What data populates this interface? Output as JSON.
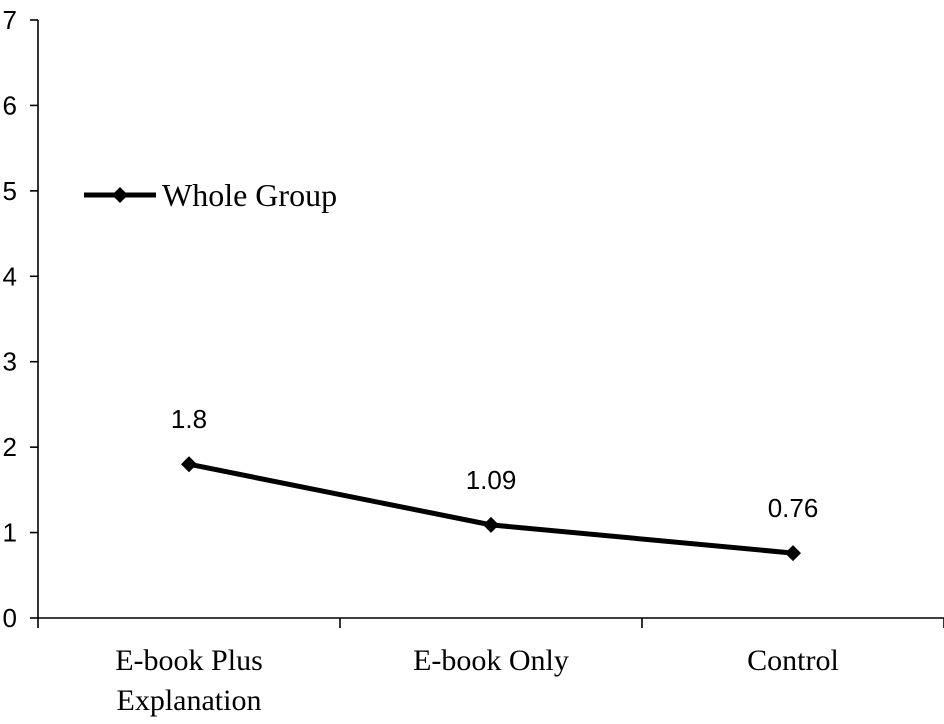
{
  "chart_data": {
    "type": "line",
    "categories": [
      [
        "E-book Plus",
        "Explanation"
      ],
      [
        "E-book Only"
      ],
      [
        "Control"
      ]
    ],
    "series": [
      {
        "name": "Whole Group",
        "values": [
          1.8,
          1.09,
          0.76
        ],
        "data_labels": [
          "1.8",
          "1.09",
          "0.76"
        ],
        "marker": "diamond",
        "color": "#000000"
      }
    ],
    "ylim": [
      0,
      7
    ],
    "yticks": [
      "0",
      "1",
      "2",
      "3",
      "4",
      "5",
      "6",
      "7"
    ],
    "legend_position": "left",
    "grid": false
  }
}
